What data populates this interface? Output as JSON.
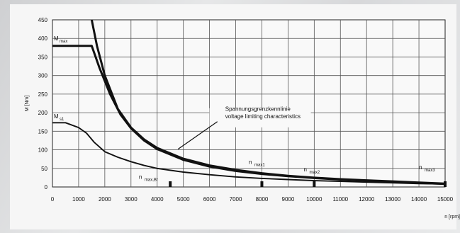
{
  "chart_data": {
    "type": "line",
    "xlabel": "n [rpm]",
    "ylabel": "M [Nm]",
    "xlim": [
      0,
      15000
    ],
    "ylim": [
      0,
      450
    ],
    "x_ticks": [
      "0",
      "1000",
      "2000",
      "3000",
      "4000",
      "5000",
      "6000",
      "7000",
      "8000",
      "9000",
      "10000",
      "11000",
      "12000",
      "13000",
      "14000",
      "15000"
    ],
    "y_ticks": [
      "0",
      "50",
      "100",
      "150",
      "200",
      "250",
      "300",
      "350",
      "400",
      "450"
    ],
    "grid": true,
    "series": [
      {
        "name": "M max",
        "x": [
          0,
          1000,
          1500,
          1800,
          2200,
          2600,
          3000,
          3500,
          4000,
          5000,
          6000,
          7000,
          8000,
          9000,
          10000,
          11000,
          12000,
          13000,
          14000,
          15000
        ],
        "y": [
          380,
          380,
          380,
          320,
          250,
          195,
          158,
          125,
          102,
          73,
          55,
          43,
          35,
          29,
          24,
          20,
          17,
          14,
          11,
          8
        ]
      },
      {
        "name": "M s1",
        "x": [
          0,
          500,
          1000,
          1300,
          1600,
          2000,
          2500,
          3000,
          3500,
          4000,
          5000,
          6000,
          7000,
          8000,
          9000,
          10000,
          11000,
          12000,
          13000,
          14000,
          15000
        ],
        "y": [
          173,
          173,
          160,
          145,
          120,
          95,
          80,
          68,
          58,
          50,
          40,
          33,
          27,
          23,
          20,
          17,
          15,
          13,
          11,
          9,
          8
        ]
      },
      {
        "name": "Spannungsgrenzkennlinie / voltage limiting characteristics",
        "x": [
          1500,
          1700,
          2000,
          2500,
          3000,
          3500,
          4000,
          5000,
          6000,
          7000,
          8000,
          9000,
          10000,
          11000,
          12000,
          13000,
          14000,
          15000
        ],
        "y": [
          450,
          380,
          300,
          210,
          160,
          128,
          105,
          76,
          58,
          46,
          37,
          30,
          25,
          21,
          18,
          15,
          12,
          9
        ]
      }
    ],
    "annotations": [
      {
        "main": "M",
        "sub": "max",
        "x": 0,
        "y": 395
      },
      {
        "main": "M",
        "sub": "s1",
        "x": 0,
        "y": 185
      },
      {
        "main": "n",
        "sub": "max,Br",
        "x": 3300,
        "y": 22
      },
      {
        "main": "n",
        "sub": "max1",
        "x": 7500,
        "y": 62
      },
      {
        "main": "n",
        "sub": "max2",
        "x": 9600,
        "y": 42
      },
      {
        "main": "n",
        "sub": "max3",
        "x": 14000,
        "y": 48
      }
    ],
    "note_lines": [
      "Spannungsgrenzkennlinie",
      "voltage limiting characteristics"
    ],
    "marker_speeds": [
      4500,
      8000,
      10000,
      15000
    ]
  }
}
